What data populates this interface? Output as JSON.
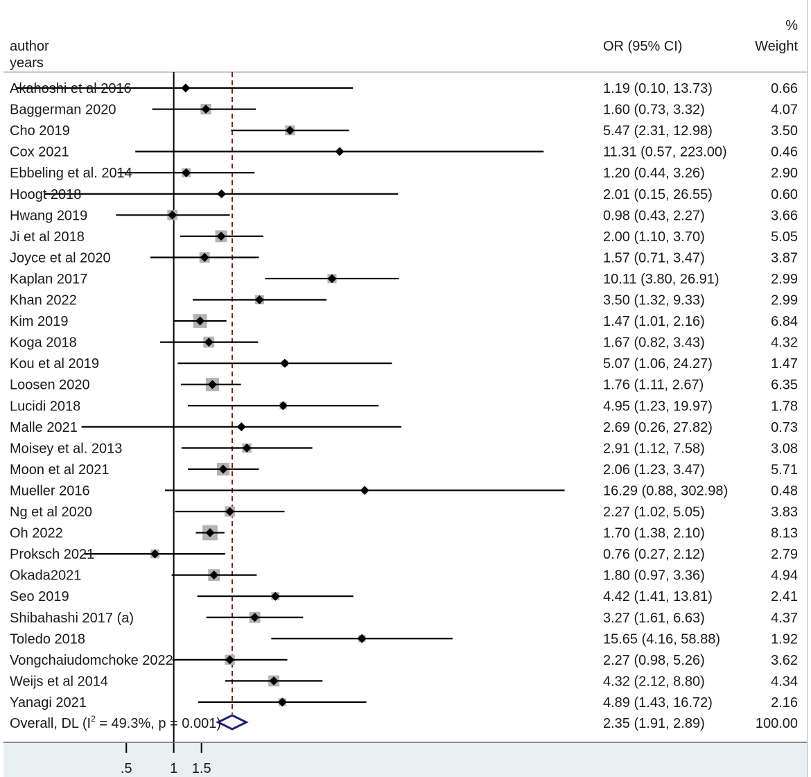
{
  "chart_data": {
    "type": "forest",
    "x_scale": "log",
    "header": {
      "study_col": "author",
      "study_col_line2": "years",
      "effect_col": "OR (95% CI)",
      "weight_col_line1": "%",
      "weight_col_line2": "Weight"
    },
    "null_value": 1,
    "overall_or": 2.35,
    "x_ticks": [
      ".5",
      "1",
      "1.5"
    ],
    "x_tick_values": [
      0.5,
      1,
      1.5
    ],
    "x_range": [
      0.083,
      480
    ],
    "colors": {
      "box": "#b3b3b3",
      "marker": "#000000",
      "line": "#000000",
      "overall_line": "#8b1a1a",
      "diamond": "#1f1f7a",
      "axis_band": "#e8f0f2"
    },
    "studies": [
      {
        "study": "Akahoshi et al 2016",
        "or": 1.19,
        "lo": 0.1,
        "hi": 13.73,
        "ci_text": "1.19 (0.10, 13.73)",
        "weight": 0.66,
        "weight_text": "0.66"
      },
      {
        "study": "Baggerman 2020",
        "or": 1.6,
        "lo": 0.73,
        "hi": 3.32,
        "ci_text": "1.60 (0.73, 3.32)",
        "weight": 4.07,
        "weight_text": "4.07"
      },
      {
        "study": "Cho 2019",
        "or": 5.47,
        "lo": 2.31,
        "hi": 12.98,
        "ci_text": "5.47 (2.31, 12.98)",
        "weight": 3.5,
        "weight_text": "3.50"
      },
      {
        "study": "Cox 2021",
        "or": 11.31,
        "lo": 0.57,
        "hi": 223.0,
        "ci_text": "11.31 (0.57, 223.00)",
        "weight": 0.46,
        "weight_text": "0.46"
      },
      {
        "study": "Ebbeling et al. 2014",
        "or": 1.2,
        "lo": 0.44,
        "hi": 3.26,
        "ci_text": "1.20 (0.44, 3.26)",
        "weight": 2.9,
        "weight_text": "2.90"
      },
      {
        "study": "Hoogt 2018",
        "or": 2.01,
        "lo": 0.15,
        "hi": 26.55,
        "ci_text": "2.01 (0.15, 26.55)",
        "weight": 0.6,
        "weight_text": "0.60"
      },
      {
        "study": "Hwang 2019",
        "or": 0.98,
        "lo": 0.43,
        "hi": 2.27,
        "ci_text": "0.98 (0.43, 2.27)",
        "weight": 3.66,
        "weight_text": "3.66"
      },
      {
        "study": "Ji et al 2018",
        "or": 2.0,
        "lo": 1.1,
        "hi": 3.7,
        "ci_text": "2.00 (1.10, 3.70)",
        "weight": 5.05,
        "weight_text": "5.05"
      },
      {
        "study": "Joyce et al 2020",
        "or": 1.57,
        "lo": 0.71,
        "hi": 3.47,
        "ci_text": "1.57 (0.71, 3.47)",
        "weight": 3.87,
        "weight_text": "3.87"
      },
      {
        "study": "Kaplan 2017",
        "or": 10.11,
        "lo": 3.8,
        "hi": 26.91,
        "ci_text": "10.11 (3.80, 26.91)",
        "weight": 2.99,
        "weight_text": "2.99"
      },
      {
        "study": "Khan 2022",
        "or": 3.5,
        "lo": 1.32,
        "hi": 9.33,
        "ci_text": "3.50 (1.32, 9.33)",
        "weight": 2.99,
        "weight_text": "2.99"
      },
      {
        "study": "Kim 2019",
        "or": 1.47,
        "lo": 1.01,
        "hi": 2.16,
        "ci_text": "1.47 (1.01, 2.16)",
        "weight": 6.84,
        "weight_text": "6.84"
      },
      {
        "study": "Koga 2018",
        "or": 1.67,
        "lo": 0.82,
        "hi": 3.43,
        "ci_text": "1.67 (0.82, 3.43)",
        "weight": 4.32,
        "weight_text": "4.32"
      },
      {
        "study": "Kou et al 2019",
        "or": 5.07,
        "lo": 1.06,
        "hi": 24.27,
        "ci_text": "5.07 (1.06, 24.27)",
        "weight": 1.47,
        "weight_text": "1.47"
      },
      {
        "study": "Loosen 2020",
        "or": 1.76,
        "lo": 1.11,
        "hi": 2.67,
        "ci_text": "1.76 (1.11, 2.67)",
        "weight": 6.35,
        "weight_text": "6.35"
      },
      {
        "study": "Lucidi 2018",
        "or": 4.95,
        "lo": 1.23,
        "hi": 19.97,
        "ci_text": "4.95 (1.23, 19.97)",
        "weight": 1.78,
        "weight_text": "1.78"
      },
      {
        "study": "Malle 2021",
        "or": 2.69,
        "lo": 0.26,
        "hi": 27.82,
        "ci_text": "2.69 (0.26, 27.82)",
        "weight": 0.73,
        "weight_text": "0.73"
      },
      {
        "study": "Moisey et al. 2013",
        "or": 2.91,
        "lo": 1.12,
        "hi": 7.58,
        "ci_text": "2.91 (1.12, 7.58)",
        "weight": 3.08,
        "weight_text": "3.08"
      },
      {
        "study": "Moon et al 2021",
        "or": 2.06,
        "lo": 1.23,
        "hi": 3.47,
        "ci_text": "2.06 (1.23, 3.47)",
        "weight": 5.71,
        "weight_text": "5.71"
      },
      {
        "study": "Mueller 2016",
        "or": 16.29,
        "lo": 0.88,
        "hi": 302.98,
        "ci_text": "16.29 (0.88, 302.98)",
        "weight": 0.48,
        "weight_text": "0.48"
      },
      {
        "study": "Ng et al 2020",
        "or": 2.27,
        "lo": 1.02,
        "hi": 5.05,
        "ci_text": "2.27 (1.02, 5.05)",
        "weight": 3.83,
        "weight_text": "3.83"
      },
      {
        "study": "Oh 2022",
        "or": 1.7,
        "lo": 1.38,
        "hi": 2.1,
        "ci_text": "1.70 (1.38, 2.10)",
        "weight": 8.13,
        "weight_text": "8.13"
      },
      {
        "study": "Proksch 2021",
        "or": 0.76,
        "lo": 0.27,
        "hi": 2.12,
        "ci_text": "0.76 (0.27, 2.12)",
        "weight": 2.79,
        "weight_text": "2.79"
      },
      {
        "study": "Okada2021",
        "or": 1.8,
        "lo": 0.97,
        "hi": 3.36,
        "ci_text": "1.80 (0.97, 3.36)",
        "weight": 4.94,
        "weight_text": "4.94"
      },
      {
        "study": "Seo 2019",
        "or": 4.42,
        "lo": 1.41,
        "hi": 13.81,
        "ci_text": "4.42 (1.41, 13.81)",
        "weight": 2.41,
        "weight_text": "2.41"
      },
      {
        "study": "Shibahashi 2017 (a)",
        "or": 3.27,
        "lo": 1.61,
        "hi": 6.63,
        "ci_text": "3.27 (1.61, 6.63)",
        "weight": 4.37,
        "weight_text": "4.37"
      },
      {
        "study": "Toledo 2018",
        "or": 15.65,
        "lo": 4.16,
        "hi": 58.88,
        "ci_text": "15.65 (4.16, 58.88)",
        "weight": 1.92,
        "weight_text": "1.92"
      },
      {
        "study": "Vongchaiudomchoke 2022",
        "or": 2.27,
        "lo": 0.98,
        "hi": 5.26,
        "ci_text": "2.27 (0.98, 5.26)",
        "weight": 3.62,
        "weight_text": "3.62"
      },
      {
        "study": "Weijs et al 2014",
        "or": 4.32,
        "lo": 2.12,
        "hi": 8.8,
        "ci_text": "4.32 (2.12, 8.80)",
        "weight": 4.34,
        "weight_text": "4.34"
      },
      {
        "study": "Yanagi  2021",
        "or": 4.89,
        "lo": 1.43,
        "hi": 16.72,
        "ci_text": "4.89 (1.43, 16.72)",
        "weight": 2.16,
        "weight_text": "2.16"
      }
    ],
    "overall": {
      "label_prefix": "Overall, DL (I",
      "label_sup": "2",
      "label_suffix": " = 49.3%, p = 0.001)",
      "or": 2.35,
      "lo": 1.91,
      "hi": 2.89,
      "ci_text": "2.35 (1.91, 2.89)",
      "weight_text": "100.00"
    }
  }
}
